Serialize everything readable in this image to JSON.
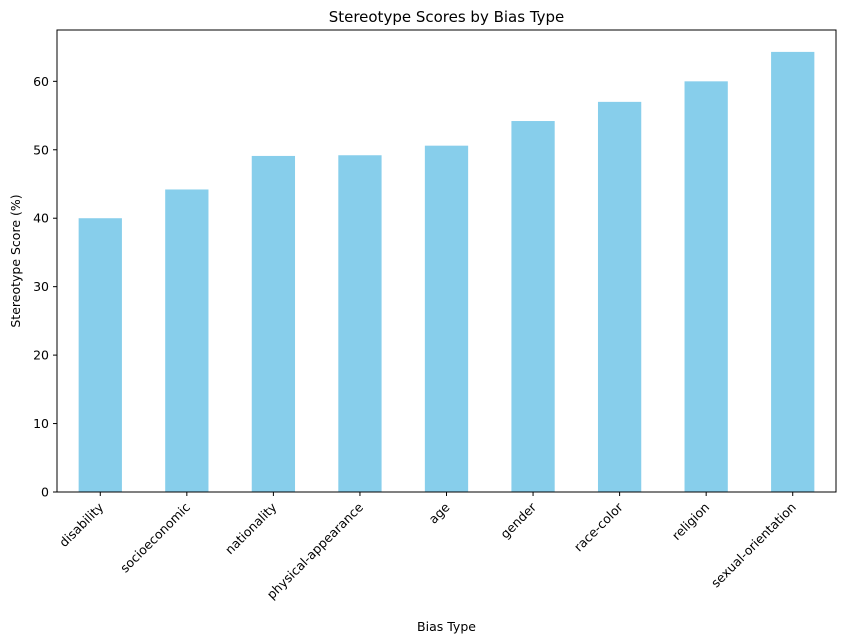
{
  "chart_data": {
    "type": "bar",
    "title": "Stereotype Scores by Bias Type",
    "xlabel": "Bias Type",
    "ylabel": "Stereotype Score (%)",
    "categories": [
      "disability",
      "socioeconomic",
      "nationality",
      "physical-appearance",
      "age",
      "gender",
      "race-color",
      "religion",
      "sexual-orientation"
    ],
    "values": [
      40.0,
      44.2,
      49.1,
      49.2,
      50.6,
      54.2,
      57.0,
      60.0,
      64.3
    ],
    "ylim": [
      0,
      67.5
    ],
    "yticks": [
      0,
      10,
      20,
      30,
      40,
      50,
      60
    ],
    "bar_color": "#87ceeb",
    "grid": false,
    "legend": "none"
  }
}
